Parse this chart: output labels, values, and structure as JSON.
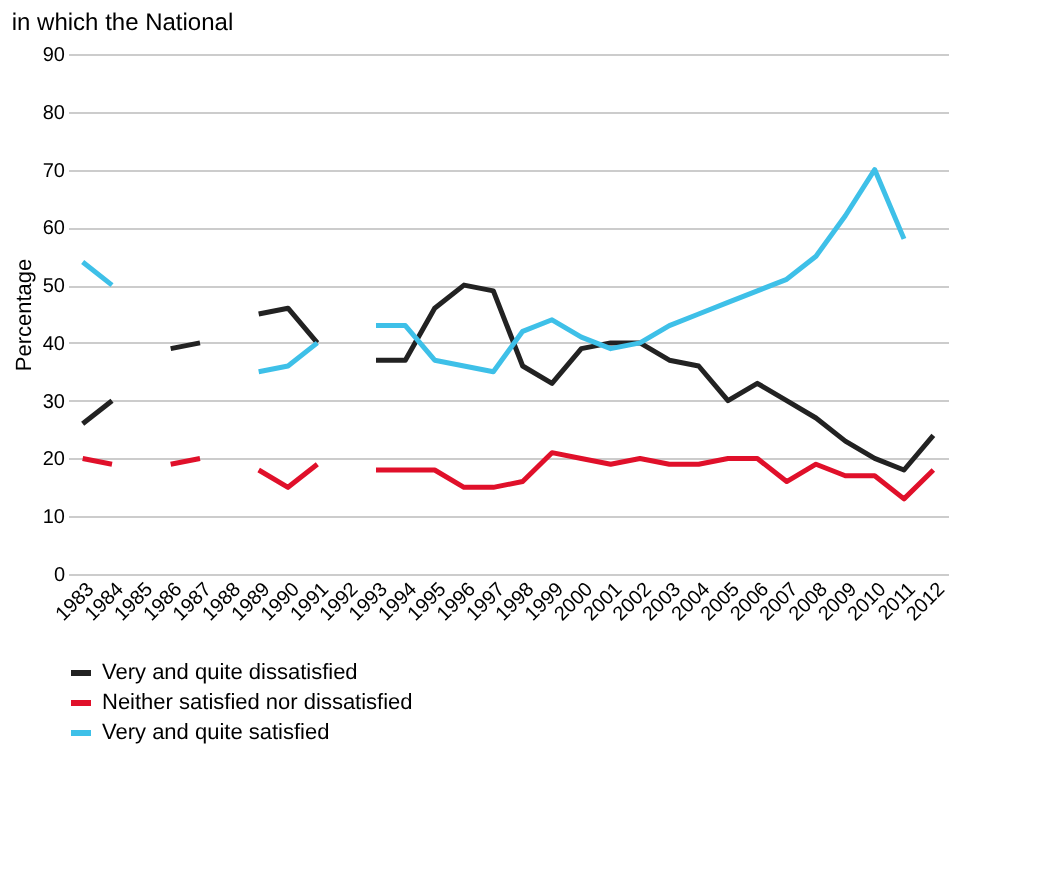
{
  "chart_data": {
    "type": "line",
    "title": "in which the National",
    "ylabel": "Percentage",
    "categories": [
      "1983",
      "1984",
      "1985",
      "1986",
      "1987",
      "1988",
      "1989",
      "1990",
      "1991",
      "1992",
      "1993",
      "1994",
      "1995",
      "1996",
      "1997",
      "1998",
      "1999",
      "2000",
      "2001",
      "2002",
      "2003",
      "2004",
      "2005",
      "2006",
      "2007",
      "2008",
      "2009",
      "2010",
      "2011",
      "2012"
    ],
    "series": [
      {
        "name": "Very and quite dissatisfied",
        "color": "#222222",
        "values": [
          26,
          30,
          null,
          39,
          40,
          null,
          45,
          46,
          40,
          null,
          37,
          37,
          46,
          50,
          49,
          36,
          33,
          39,
          40,
          40,
          37,
          36,
          30,
          33,
          30,
          27,
          23,
          20,
          18,
          24
        ]
      },
      {
        "name": "Neither satisfied nor dissatisfied",
        "color": "#e0102a",
        "values": [
          20,
          19,
          null,
          19,
          20,
          null,
          18,
          15,
          19,
          null,
          18,
          18,
          18,
          15,
          15,
          16,
          21,
          20,
          19,
          20,
          19,
          19,
          20,
          20,
          16,
          19,
          17,
          17,
          13,
          18
        ]
      },
      {
        "name": "Very and quite satisfied",
        "color": "#3ec0e8",
        "values": [
          54,
          50,
          null,
          null,
          null,
          null,
          35,
          36,
          40,
          null,
          43,
          43,
          37,
          36,
          35,
          42,
          44,
          41,
          39,
          40,
          43,
          45,
          47,
          49,
          51,
          55,
          62,
          70,
          58,
          null
        ]
      }
    ],
    "ylim": [
      0,
      90
    ],
    "yticks": [
      0,
      10,
      20,
      30,
      40,
      50,
      60,
      70,
      80,
      90
    ],
    "grid": "y",
    "legend": "bottom left",
    "line_style": "solid",
    "marker": "none"
  }
}
